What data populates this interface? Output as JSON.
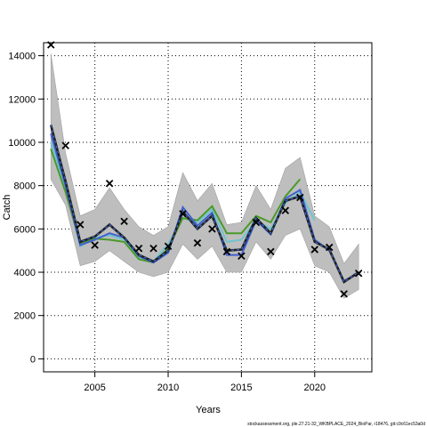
{
  "chart_data": {
    "type": "line",
    "xlabel": "Years",
    "ylabel": "Catch",
    "xlim": [
      2001.5,
      2023.9
    ],
    "ylim": [
      -600,
      14600
    ],
    "x_ticks": [
      2005,
      2010,
      2015,
      2020
    ],
    "y_ticks": [
      0,
      2000,
      4000,
      6000,
      8000,
      10000,
      12000,
      14000
    ],
    "grid": true,
    "legend": "none",
    "footer": "stockassessment.org, ple.27.21-32_WKBPLACE_2024_BioPar, r18476, git:c9c61ec53a0d",
    "colors": {
      "band": "#bebebe",
      "band_edge": "#a0a0a0",
      "observed": "#000000",
      "main": "#1e1e1e",
      "series_blue": "#4060d0",
      "series_teal": "#70c4cc",
      "series_green": "#4a9a2a"
    },
    "band": {
      "x": [
        2002,
        2003,
        2004,
        2005,
        2006,
        2007,
        2008,
        2009,
        2010,
        2011,
        2012,
        2013,
        2014,
        2015,
        2016,
        2017,
        2018,
        2019,
        2020,
        2021,
        2022,
        2023
      ],
      "upper": [
        14100,
        9500,
        6600,
        6900,
        7900,
        6900,
        6100,
        5700,
        6100,
        8600,
        7300,
        8100,
        6200,
        6300,
        8000,
        6900,
        8800,
        9300,
        6600,
        6100,
        4400,
        5300
      ],
      "lower": [
        8300,
        7100,
        4300,
        4500,
        5000,
        4500,
        4000,
        3800,
        4000,
        5300,
        4600,
        5200,
        4000,
        4000,
        5400,
        4600,
        5700,
        6000,
        4300,
        4000,
        2800,
        3200
      ]
    },
    "observed": {
      "marker": "x",
      "x": [
        2002,
        2003,
        2004,
        2005,
        2006,
        2007,
        2008,
        2009,
        2010,
        2011,
        2012,
        2013,
        2014,
        2015,
        2016,
        2017,
        2018,
        2019,
        2020,
        2021,
        2022,
        2023
      ],
      "y": [
        14500,
        9850,
        6200,
        5250,
        8100,
        6350,
        5100,
        5100,
        5200,
        6700,
        5350,
        6000,
        4950,
        4750,
        6300,
        4950,
        6850,
        7450,
        5050,
        5150,
        3000,
        3950
      ]
    },
    "series": [
      {
        "x": [
          2002,
          2003,
          2004,
          2005,
          2006,
          2007,
          2008,
          2009,
          2010,
          2011,
          2012,
          2013,
          2014,
          2015,
          2016,
          2017,
          2018,
          2019,
          2020,
          2021,
          2022,
          2023
        ],
        "values": [
          10800,
          8200,
          5400,
          5650,
          6200,
          5600,
          4800,
          4500,
          5000,
          6800,
          6000,
          6600,
          5000,
          5050,
          6500,
          5800,
          7300,
          7500,
          5400,
          5050,
          3550,
          4000
        ],
        "color": "#1e1e1e",
        "dashed": true
      },
      {
        "x": [
          2002,
          2003,
          2004,
          2005,
          2006,
          2007,
          2008,
          2009,
          2010,
          2011,
          2012,
          2013,
          2014,
          2015,
          2016,
          2017,
          2018,
          2019,
          2020,
          2021,
          2022,
          2023
        ],
        "values": [
          10400,
          8000,
          5250,
          5500,
          5800,
          5600,
          4750,
          4450,
          4900,
          7000,
          6150,
          6750,
          4800,
          4800,
          6400,
          5750,
          7400,
          7800,
          5500,
          5000,
          3600,
          3950
        ],
        "color": "#4060d0",
        "dashed": false
      },
      {
        "x": [
          2002,
          2003,
          2004,
          2005,
          2006,
          2007,
          2008,
          2009,
          2010,
          2011,
          2012,
          2013,
          2014,
          2015,
          2016,
          2017,
          2018,
          2019,
          2020
        ],
        "values": [
          10000,
          7900,
          5200,
          5600,
          5700,
          5500,
          4650,
          4500,
          5300,
          6500,
          6300,
          6900,
          5400,
          5500,
          6400,
          6000,
          7200,
          7700,
          6400
        ],
        "color": "#70c4cc",
        "dashed": false
      },
      {
        "x": [
          2002,
          2003,
          2004,
          2005,
          2006,
          2007,
          2008,
          2009,
          2010,
          2011,
          2012,
          2013,
          2014,
          2015,
          2016,
          2017,
          2018,
          2019
        ],
        "values": [
          9700,
          7700,
          5350,
          5550,
          5500,
          5400,
          4600,
          4450,
          5100,
          6500,
          6400,
          7050,
          5800,
          5800,
          6600,
          6300,
          7500,
          8300
        ],
        "color": "#4a9a2a",
        "dashed": false
      }
    ]
  }
}
